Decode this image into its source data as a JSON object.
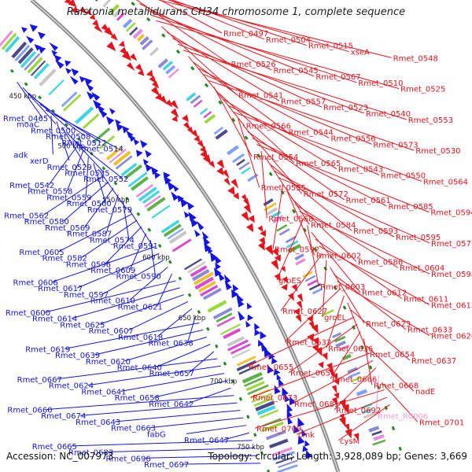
{
  "title": "Ralstonia metallidurans CH34 chromosome 1, complete sequence",
  "accession": "Accession: NC_007973",
  "summary": "Topology: circular; Length: 3,928,089 bp; Genes: 3,669",
  "colors": {
    "forward": "#e8141c",
    "reverse": "#1414e8",
    "rna": "#f39bd6",
    "backbone": "#888888",
    "tick": "#1f8a1f"
  },
  "scale_labels": [
    "450 kbp",
    "500 kbp",
    "550 kbp",
    "600 kbp",
    "650 kbp",
    "700 kbp",
    "750 kbp"
  ],
  "right_labels": [
    {
      "text": "Rmet_0497",
      "strand": "forward"
    },
    {
      "text": "Rmet_0504",
      "strand": "forward"
    },
    {
      "text": "Rmet_0515",
      "strand": "forward"
    },
    {
      "text": "xseA",
      "strand": "forward"
    },
    {
      "text": "Rmet_0548",
      "strand": "forward"
    },
    {
      "text": "Rmet_0526",
      "strand": "forward"
    },
    {
      "text": "Rmet_0545",
      "strand": "forward"
    },
    {
      "text": "Rmet_0567",
      "strand": "forward"
    },
    {
      "text": "Rmet_0510",
      "strand": "forward"
    },
    {
      "text": "Rmet_0525",
      "strand": "forward"
    },
    {
      "text": "Rmet_0541",
      "strand": "forward"
    },
    {
      "text": "Rmet_0557",
      "strand": "forward"
    },
    {
      "text": "Rmet_0523",
      "strand": "forward"
    },
    {
      "text": "Rmet_0540",
      "strand": "forward"
    },
    {
      "text": "Rmet_0553",
      "strand": "forward"
    },
    {
      "text": "Rmet_0566",
      "strand": "forward"
    },
    {
      "text": "Rmet_0544",
      "strand": "forward"
    },
    {
      "text": "Rmet_0556",
      "strand": "forward"
    },
    {
      "text": "Rmet_0573",
      "strand": "forward"
    },
    {
      "text": "Rmet_0530",
      "strand": "forward"
    },
    {
      "text": "Rmet_0554",
      "strand": "forward"
    },
    {
      "text": "Rmet_0565",
      "strand": "forward"
    },
    {
      "text": "Rmet_0543",
      "strand": "forward"
    },
    {
      "text": "Rmet_0550",
      "strand": "forward"
    },
    {
      "text": "Rmet_0564",
      "strand": "forward"
    },
    {
      "text": "Rmet_0555",
      "strand": "forward"
    },
    {
      "text": "Rmet_0572",
      "strand": "forward"
    },
    {
      "text": "Rmet_0561",
      "strand": "forward"
    },
    {
      "text": "Rmet_0585",
      "strand": "forward"
    },
    {
      "text": "Rmet_0594",
      "strand": "forward"
    },
    {
      "text": "Rmet_0568",
      "strand": "forward"
    },
    {
      "text": "Rmet_0584",
      "strand": "forward"
    },
    {
      "text": "Rmet_0593",
      "strand": "forward"
    },
    {
      "text": "Rmet_0595",
      "strand": "forward"
    },
    {
      "text": "Rmet_0577",
      "strand": "forward"
    },
    {
      "text": "Rmet_0592",
      "strand": "forward"
    },
    {
      "text": "Rmet_0602",
      "strand": "forward"
    },
    {
      "text": "Rmet_0586",
      "strand": "forward"
    },
    {
      "text": "Rmet_0604",
      "strand": "forward"
    },
    {
      "text": "Rmet_0598",
      "strand": "forward"
    },
    {
      "text": "groES",
      "strand": "forward"
    },
    {
      "text": "Rmet_0603",
      "strand": "forward"
    },
    {
      "text": "Rmet_0612",
      "strand": "forward"
    },
    {
      "text": "Rmet_0611",
      "strand": "forward"
    },
    {
      "text": "Rmet_0613",
      "strand": "forward"
    },
    {
      "text": "Rmet_0627",
      "strand": "forward"
    },
    {
      "text": "groEL",
      "strand": "forward"
    },
    {
      "text": "Rmet_0623",
      "strand": "forward"
    },
    {
      "text": "Rmet_0633",
      "strand": "forward"
    },
    {
      "text": "Rmet_0626",
      "strand": "forward"
    },
    {
      "text": "Rmet_0632",
      "strand": "forward"
    },
    {
      "text": "Rmet_0636",
      "strand": "forward"
    },
    {
      "text": "Rmet_0654",
      "strand": "forward"
    },
    {
      "text": "Rmet_0637",
      "strand": "forward"
    },
    {
      "text": "Rmet_0655",
      "strand": "forward"
    },
    {
      "text": "Rmet_0656",
      "strand": "forward"
    },
    {
      "text": "Rmet_0666",
      "strand": "forward"
    },
    {
      "text": "Rmet_0668",
      "strand": "forward"
    },
    {
      "text": "nadE",
      "strand": "forward"
    },
    {
      "text": "Rmet_0673",
      "strand": "forward"
    },
    {
      "text": "Rmet_0681",
      "strand": "forward"
    },
    {
      "text": "Rmet_0692",
      "strand": "forward"
    },
    {
      "text": "Rmet_R0006",
      "strand": "rna"
    },
    {
      "text": "Rmet_0701",
      "strand": "forward"
    },
    {
      "text": "Rmet_0709",
      "strand": "forward"
    },
    {
      "text": "cmk",
      "strand": "forward"
    },
    {
      "text": "cysM",
      "strand": "forward"
    }
  ],
  "left_labels": [
    {
      "text": "Rmet_0465",
      "strand": "reverse"
    },
    {
      "text": "moaC",
      "strand": "reverse"
    },
    {
      "text": "Rmet_0500",
      "strand": "reverse"
    },
    {
      "text": "Rmet_0508",
      "strand": "reverse"
    },
    {
      "text": "Rmet_0512",
      "strand": "reverse"
    },
    {
      "text": "Rmet_0514",
      "strand": "reverse"
    },
    {
      "text": "adk",
      "strand": "reverse"
    },
    {
      "text": "xerD",
      "strand": "reverse"
    },
    {
      "text": "Rmet_0529",
      "strand": "reverse"
    },
    {
      "text": "Rmet_0535",
      "strand": "reverse"
    },
    {
      "text": "Rmet_0552",
      "strand": "reverse"
    },
    {
      "text": "Rmet_0542",
      "strand": "reverse"
    },
    {
      "text": "Rmet_0558",
      "strand": "reverse"
    },
    {
      "text": "Rmet_0559",
      "strand": "reverse"
    },
    {
      "text": "Rmet_0560",
      "strand": "reverse"
    },
    {
      "text": "Rmet_0579",
      "strand": "reverse"
    },
    {
      "text": "Rmet_0562",
      "strand": "reverse"
    },
    {
      "text": "Rmet_0580",
      "strand": "reverse"
    },
    {
      "text": "Rmet_0569",
      "strand": "reverse"
    },
    {
      "text": "Rmet_0587",
      "strand": "reverse"
    },
    {
      "text": "Rmet_0574",
      "strand": "reverse"
    },
    {
      "text": "Rmet_0591",
      "strand": "reverse"
    },
    {
      "text": "Rmet_0605",
      "strand": "reverse"
    },
    {
      "text": "Rmet_0582",
      "strand": "reverse"
    },
    {
      "text": "Rmet_0596",
      "strand": "reverse"
    },
    {
      "text": "Rmet_0609",
      "strand": "reverse"
    },
    {
      "text": "Rmet_0590",
      "strand": "reverse"
    },
    {
      "text": "Rmet_0606",
      "strand": "reverse"
    },
    {
      "text": "Rmet_0617",
      "strand": "reverse"
    },
    {
      "text": "Rmet_0597",
      "strand": "reverse"
    },
    {
      "text": "Rmet_0610",
      "strand": "reverse"
    },
    {
      "text": "Rmet_0621",
      "strand": "reverse"
    },
    {
      "text": "Rmet_0600",
      "strand": "reverse"
    },
    {
      "text": "Rmet_0614",
      "strand": "reverse"
    },
    {
      "text": "Rmet_0625",
      "strand": "reverse"
    },
    {
      "text": "Rmet_0607",
      "strand": "reverse"
    },
    {
      "text": "Rmet_0618",
      "strand": "reverse"
    },
    {
      "text": "Rmet_0638",
      "strand": "reverse"
    },
    {
      "text": "Rmet_0619",
      "strand": "reverse"
    },
    {
      "text": "Rmet_0639",
      "strand": "reverse"
    },
    {
      "text": "Rmet_0620",
      "strand": "reverse"
    },
    {
      "text": "Rmet_0640",
      "strand": "reverse"
    },
    {
      "text": "Rmet_0657",
      "strand": "reverse"
    },
    {
      "text": "Rmet_0667",
      "strand": "reverse"
    },
    {
      "text": "Rmet_0624",
      "strand": "reverse"
    },
    {
      "text": "Rmet_0641",
      "strand": "reverse"
    },
    {
      "text": "Rmet_0658",
      "strand": "reverse"
    },
    {
      "text": "Rmet_0642",
      "strand": "reverse"
    },
    {
      "text": "Rmet_0660",
      "strand": "reverse"
    },
    {
      "text": "Rmet_0674",
      "strand": "reverse"
    },
    {
      "text": "Rmet_0643",
      "strand": "reverse"
    },
    {
      "text": "Rmet_0663",
      "strand": "reverse"
    },
    {
      "text": "fabG",
      "strand": "reverse"
    },
    {
      "text": "Rmet_0647",
      "strand": "reverse"
    },
    {
      "text": "Rmet_0665",
      "strand": "reverse"
    },
    {
      "text": "Rmet_0683",
      "strand": "reverse"
    },
    {
      "text": "Rmet_0696",
      "strand": "reverse"
    },
    {
      "text": "Rmet_0697",
      "strand": "reverse"
    }
  ]
}
